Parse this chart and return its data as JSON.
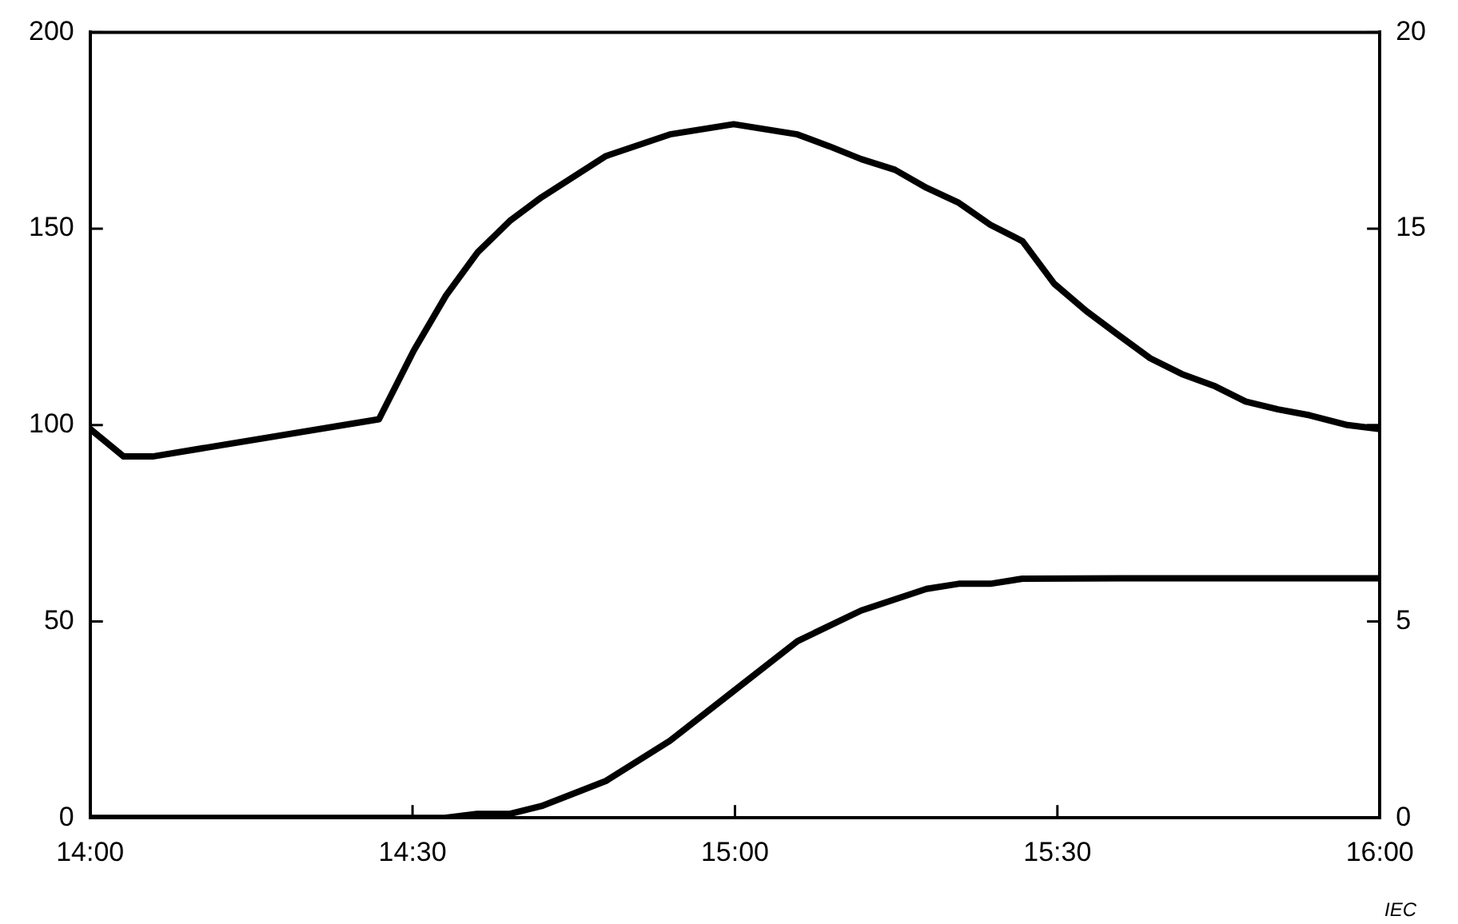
{
  "chart_data": {
    "type": "line",
    "xlim": [
      14,
      16
    ],
    "xticks": [
      {
        "value": 14,
        "label": "14:00"
      },
      {
        "value": 14.5,
        "label": "14:30"
      },
      {
        "value": 15,
        "label": "15:00"
      },
      {
        "value": 15.5,
        "label": "15:30"
      },
      {
        "value": 16,
        "label": "16:00"
      }
    ],
    "ylim": [
      0,
      200
    ],
    "yticks": [
      0,
      50,
      100,
      150,
      200
    ],
    "y2lim": [
      0,
      20
    ],
    "y2ticks": [
      0,
      5,
      {
        "value": 10,
        "label": null
      },
      15,
      20
    ],
    "grid": false,
    "legend": false,
    "marker": "none",
    "line_style": "solid",
    "series": [
      {
        "color": "#000000",
        "x": [
          14,
          14.052,
          14.097,
          14.448,
          14.502,
          14.552,
          14.601,
          14.651,
          14.7,
          14.8,
          14.899,
          14.998,
          15.097,
          15.146,
          15.196,
          15.248,
          15.297,
          15.347,
          15.396,
          15.446,
          15.495,
          15.545,
          15.594,
          15.644,
          15.693,
          15.743,
          15.792,
          15.842,
          15.891,
          15.95,
          16
        ],
        "values": [
          99,
          92,
          92,
          101.5,
          119,
          133,
          144,
          152,
          158,
          168.5,
          174,
          176.6,
          174,
          171,
          167.7,
          165,
          160.4,
          156.6,
          151,
          146.8,
          136,
          129,
          123,
          117,
          113,
          110,
          106,
          104,
          102.5,
          100,
          99
        ]
      },
      {
        "color": "#000000",
        "axis": "y2",
        "x": [
          14,
          14.3,
          14.55,
          14.6,
          14.65,
          14.7,
          14.8,
          14.899,
          14.998,
          15.097,
          15.196,
          15.297,
          15.347,
          15.396,
          15.446,
          15.6,
          15.8,
          16
        ],
        "values": [
          0,
          0,
          0,
          0.1,
          0.1,
          0.3,
          0.94,
          1.96,
          3.23,
          4.5,
          5.28,
          5.83,
          5.96,
          5.96,
          6.09,
          6.1,
          6.1,
          6.1
        ]
      }
    ],
    "annotations": [
      "IEC"
    ]
  }
}
